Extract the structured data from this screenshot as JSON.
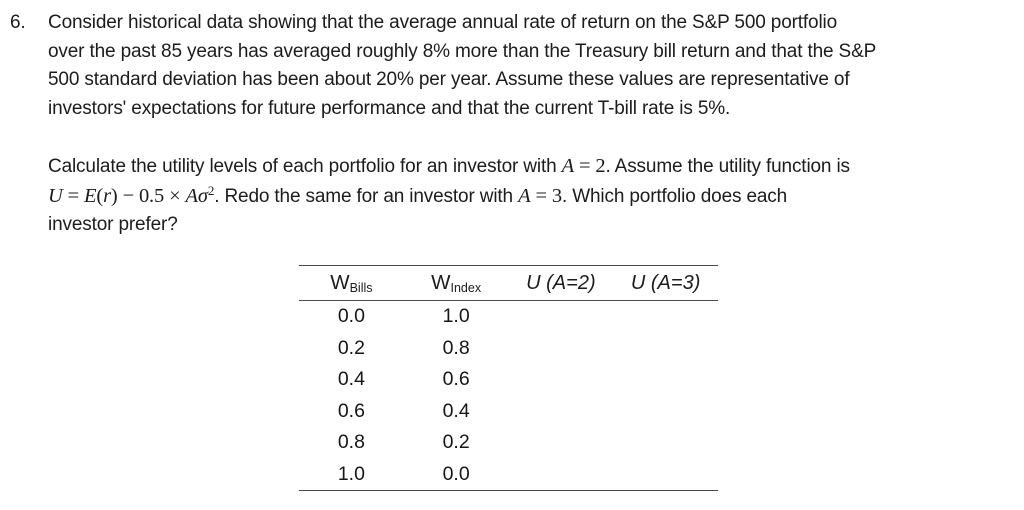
{
  "page": {
    "background": "#ffffff",
    "text_color": "#1c1c1c",
    "rule_color": "#4a4a4a"
  },
  "problem": {
    "number": "6.",
    "statement_lines": [
      "Consider historical data showing that the average annual rate of return on the S&P 500 portfolio",
      "over the past 85 years has averaged roughly 8% more than the Treasury bill return and that the S&P",
      "500 standard deviation has been about 20% per year. Assume these values are representative of",
      "investors' expectations for future performance and that the current T-bill rate is 5%."
    ],
    "question": {
      "l1_text": "Calculate the utility levels of each portfolio for an investor with ",
      "l1_var": "A",
      "l1_rel": " = 2",
      "l1_tail": ". Assume the utility function is",
      "l2_U": "U",
      "l2_eq1": " = ",
      "l2_E": "E",
      "l2_lparen": "(",
      "l2_r": "r",
      "l2_mid": ") − 0.5 × ",
      "l2_Asigma": "Aσ",
      "l2_sup": "2",
      "l2_text": ". Redo the same for an investor with ",
      "l2_var": "A",
      "l2_rel": " = 3",
      "l2_tail": ". Which portfolio does each",
      "l3_text": "investor prefer?"
    }
  },
  "table": {
    "col1_base": "W",
    "col1_sub": "Bills",
    "col2_base": "W",
    "col2_sub": "Index",
    "col3_label": "U (A=2)",
    "col4_label": "U (A=3)",
    "rows": [
      [
        "0.0",
        "1.0",
        "",
        ""
      ],
      [
        "0.2",
        "0.8",
        "",
        ""
      ],
      [
        "0.4",
        "0.6",
        "",
        ""
      ],
      [
        "0.6",
        "0.4",
        "",
        ""
      ],
      [
        "0.8",
        "0.2",
        "",
        ""
      ],
      [
        "1.0",
        "0.0",
        "",
        ""
      ]
    ]
  }
}
